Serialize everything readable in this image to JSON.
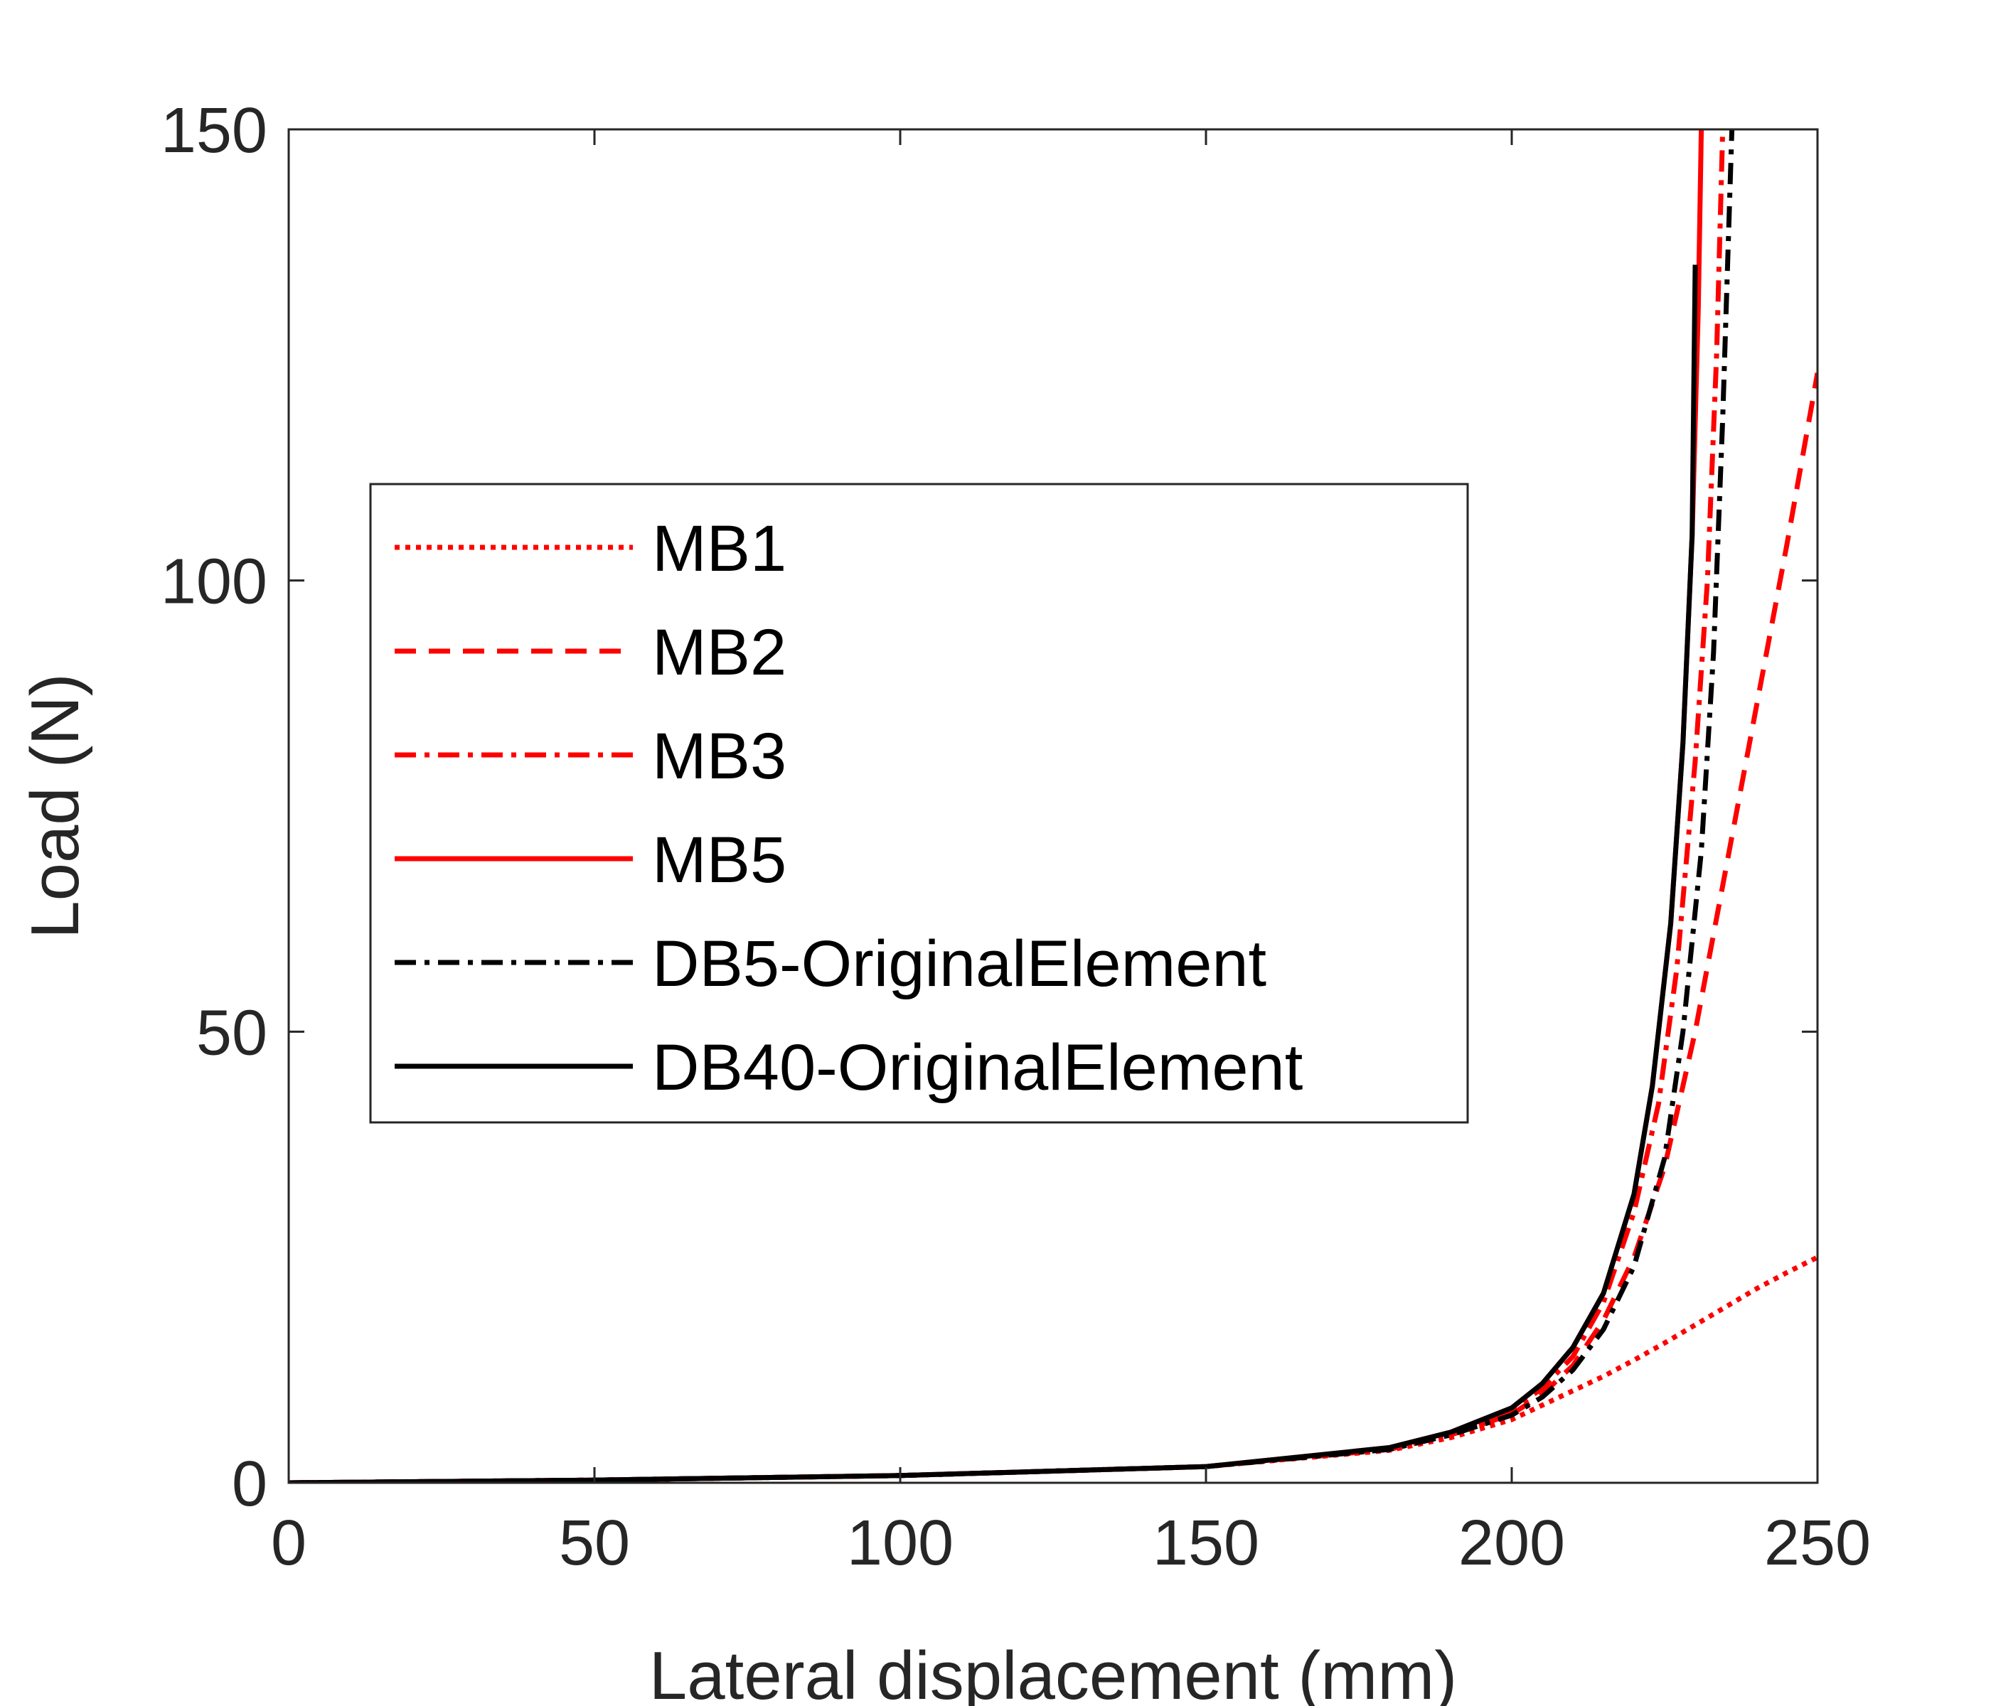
{
  "chart_data": {
    "type": "line",
    "xlabel": "Lateral displacement (mm)",
    "ylabel": "Load (N)",
    "xlim": [
      0,
      250
    ],
    "ylim": [
      0,
      150
    ],
    "xticks": [
      0,
      50,
      100,
      150,
      200,
      250
    ],
    "yticks": [
      0,
      50,
      100,
      150
    ],
    "xtick_labels": [
      "0",
      "50",
      "100",
      "150",
      "200",
      "250"
    ],
    "ytick_labels": [
      "0",
      "50",
      "100",
      "150"
    ],
    "grid": false,
    "legend_position": "center-left",
    "series": [
      {
        "name": "MB1",
        "color": "#ff0000",
        "style": "dotted",
        "x": [
          0,
          50,
          100,
          150,
          180,
          190,
          200,
          205,
          210,
          215,
          220,
          225,
          230,
          235,
          240,
          245,
          250
        ],
        "y": [
          0,
          0.3,
          0.8,
          1.8,
          3.6,
          5.0,
          7.0,
          8.6,
          10.2,
          11.8,
          13.6,
          15.5,
          17.5,
          19.5,
          21.5,
          23.3,
          25.0
        ]
      },
      {
        "name": "MB2",
        "color": "#ff0000",
        "style": "dashed",
        "x": [
          0,
          50,
          100,
          150,
          180,
          190,
          200,
          205,
          210,
          215,
          220,
          225,
          230,
          235,
          240,
          245,
          250
        ],
        "y": [
          0,
          0.3,
          0.8,
          1.8,
          3.7,
          5.3,
          7.6,
          9.8,
          13.0,
          18.0,
          25.0,
          35.0,
          50.0,
          68.0,
          86.0,
          104.0,
          123.0
        ]
      },
      {
        "name": "MB3",
        "color": "#ff0000",
        "style": "dashdot",
        "x": [
          0,
          50,
          100,
          150,
          180,
          190,
          200,
          205,
          210,
          215,
          220,
          224,
          227,
          230,
          232,
          233.5,
          234.5
        ],
        "y": [
          0,
          0.3,
          0.8,
          1.8,
          3.8,
          5.5,
          8.0,
          10.5,
          14.0,
          20.0,
          30.0,
          42.0,
          57.0,
          80.0,
          100.0,
          125.0,
          150.0
        ]
      },
      {
        "name": "MB5",
        "color": "#ff0000",
        "style": "solid",
        "x": [
          0,
          50,
          100,
          150,
          180,
          190,
          200,
          205,
          210,
          215,
          220,
          223,
          226,
          228,
          229.5,
          230.5,
          231
        ],
        "y": [
          0,
          0.3,
          0.8,
          1.8,
          3.9,
          5.6,
          8.3,
          11.0,
          15.0,
          21.0,
          32.0,
          44.0,
          62.0,
          82.0,
          105.0,
          130.0,
          150.0
        ]
      },
      {
        "name": "DB5-OriginalElement",
        "color": "#000000",
        "style": "dashdot",
        "x": [
          0,
          50,
          100,
          150,
          180,
          190,
          200,
          205,
          210,
          215,
          220,
          225,
          228,
          231,
          233,
          234.5,
          236
        ],
        "y": [
          0,
          0.3,
          0.8,
          1.8,
          3.7,
          5.3,
          7.5,
          9.5,
          12.5,
          17.0,
          24.0,
          36.0,
          50.0,
          70.0,
          92.0,
          118.0,
          150.0
        ]
      },
      {
        "name": "DB40-OriginalElement",
        "color": "#000000",
        "style": "solid",
        "x": [
          0,
          50,
          100,
          150,
          180,
          190,
          200,
          205,
          210,
          215,
          220,
          223,
          226,
          228,
          229.5,
          230
        ],
        "y": [
          0,
          0.3,
          0.8,
          1.8,
          3.9,
          5.6,
          8.3,
          11.0,
          15.0,
          21.0,
          32.0,
          44.0,
          62.0,
          82.0,
          105.0,
          135.0
        ]
      }
    ]
  }
}
